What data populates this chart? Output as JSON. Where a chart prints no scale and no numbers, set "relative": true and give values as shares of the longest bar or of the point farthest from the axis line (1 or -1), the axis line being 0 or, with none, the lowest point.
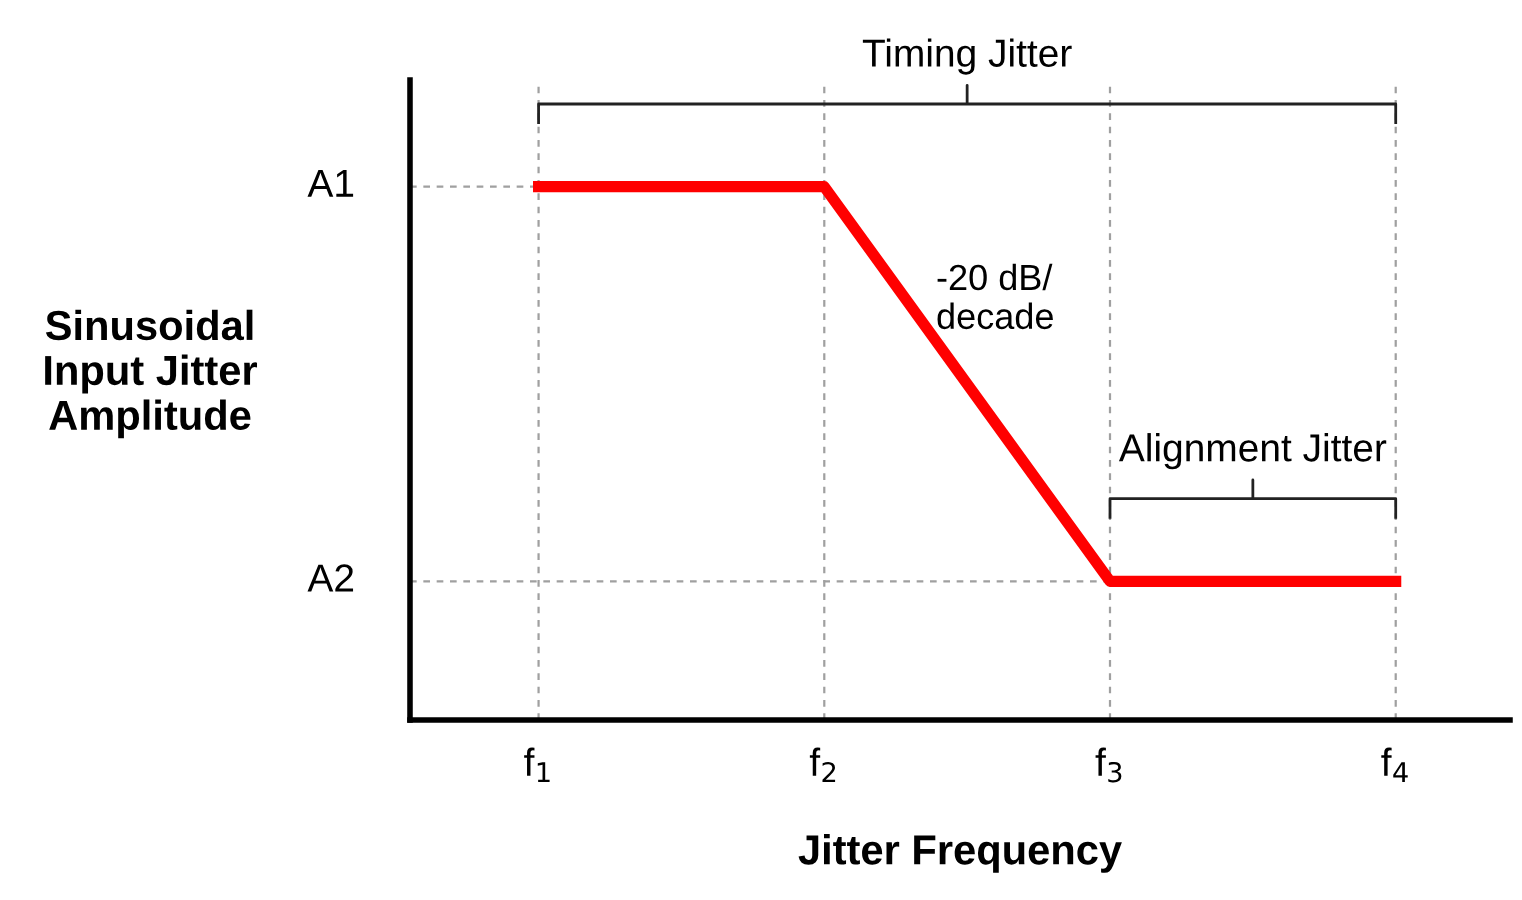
{
  "chart_data": {
    "type": "line",
    "xlabel": "Jitter Frequency",
    "ylabel": "Sinusoidal\nInput Jitter\nAmplitude",
    "relative": true,
    "categories": [
      "f$_{1}$",
      "f$_{2}$",
      "f$_{3}$",
      "f$_{4}$"
    ],
    "grid": "x",
    "series": [
      {
        "color": "#ff0000",
        "values": [
          1,
          1,
          0.26,
          0.26
        ]
      }
    ],
    "ref_lines": [
      {
        "axis": "y",
        "value": 1,
        "label": "A1",
        "color": "#a0a0a0",
        "line_style": "dashed"
      },
      {
        "axis": "y",
        "value": 0.26,
        "label": "A2",
        "color": "#a0a0a0",
        "line_style": "dashed"
      }
    ],
    "annotations": [
      "Timing Jitter",
      "Alignment Jitter",
      "-20 dB/\ndecade"
    ]
  }
}
